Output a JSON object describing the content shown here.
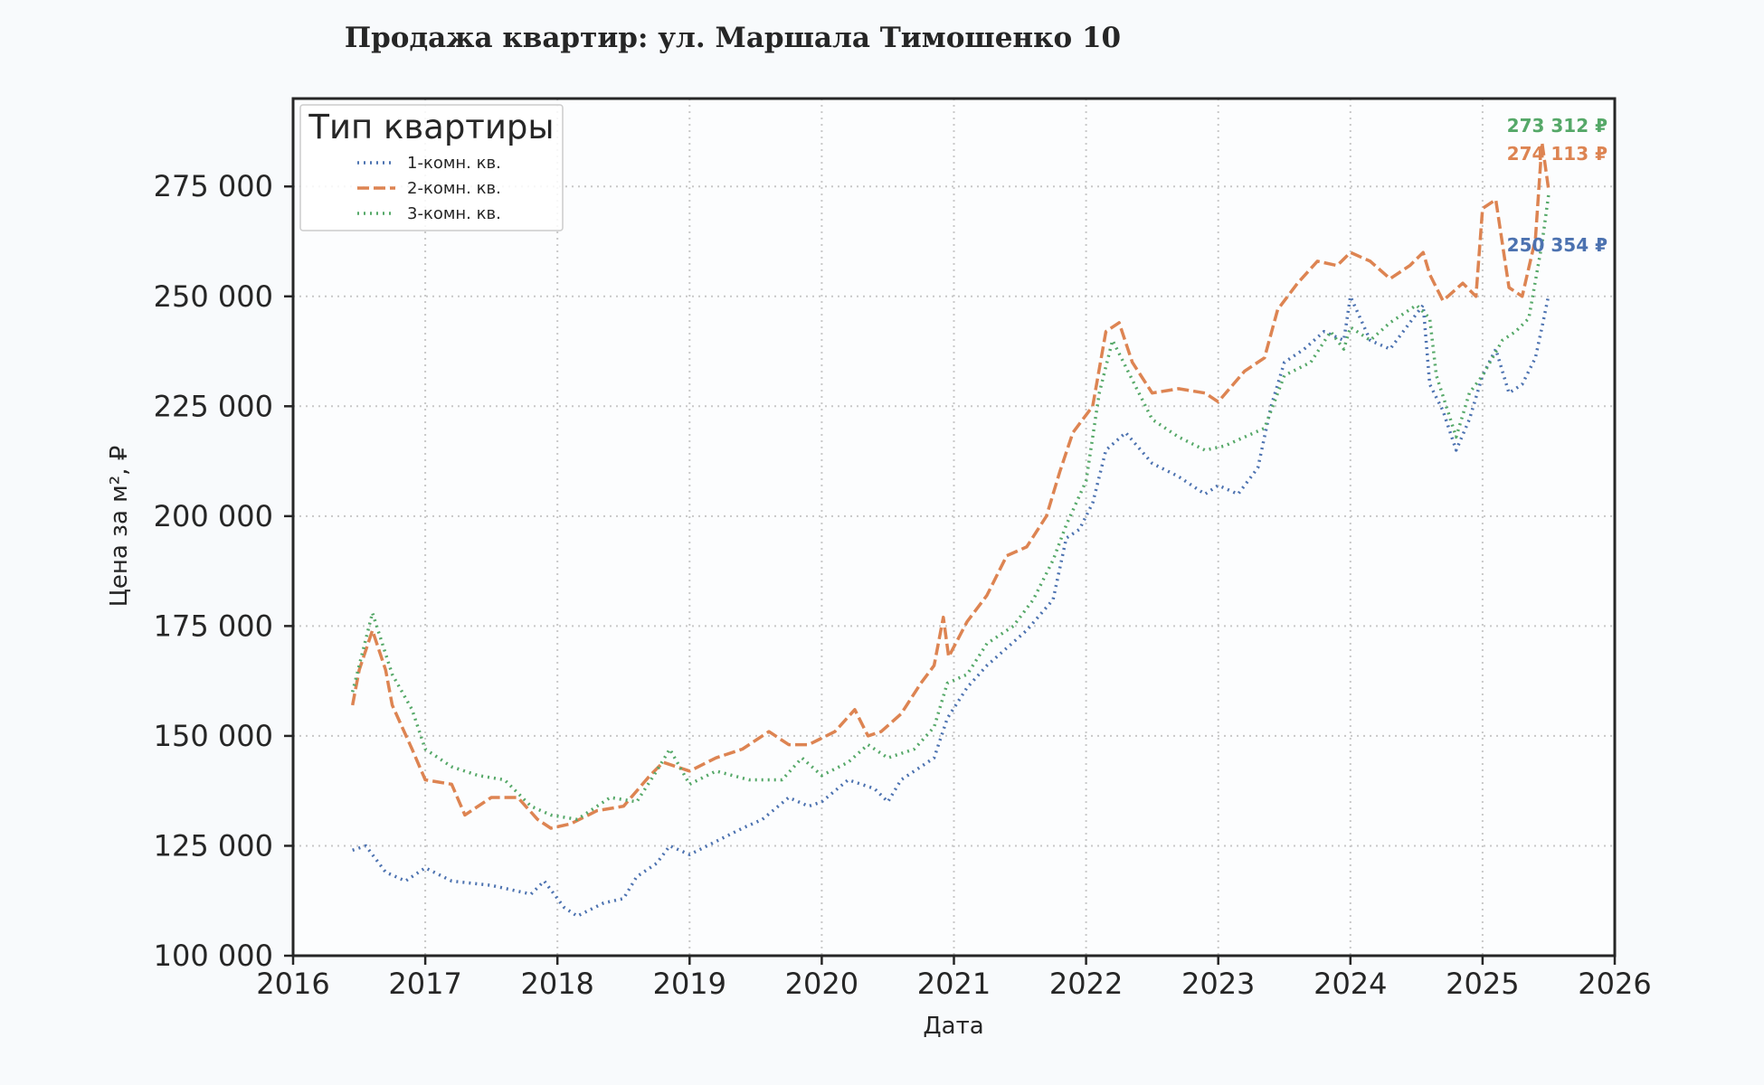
{
  "chart_data": {
    "type": "line",
    "title": "Продажа квартир: ул. Маршала Тимошенко 10",
    "xlabel": "Дата",
    "ylabel": "Цена за м², ₽",
    "xlim": [
      2016,
      2026
    ],
    "ylim": [
      100000,
      295000
    ],
    "x_ticks": [
      "2016",
      "2017",
      "2018",
      "2019",
      "2020",
      "2021",
      "2022",
      "2023",
      "2024",
      "2025",
      "2026"
    ],
    "y_ticks": [
      "100 000",
      "125 000",
      "150 000",
      "175 000",
      "200 000",
      "225 000",
      "250 000",
      "275 000"
    ],
    "y_tick_values": [
      100000,
      125000,
      150000,
      175000,
      200000,
      225000,
      250000,
      275000
    ],
    "grid": true,
    "legend": {
      "title": "Тип квартиры",
      "position": "top-left"
    },
    "series": [
      {
        "name": "1-комн. кв.",
        "color": "#4c72b0",
        "dash": "dotted",
        "end_label": "250 354 ₽",
        "x": [
          2016.45,
          2016.55,
          2016.7,
          2016.85,
          2017.0,
          2017.2,
          2017.5,
          2017.8,
          2017.9,
          2018.05,
          2018.15,
          2018.35,
          2018.5,
          2018.6,
          2018.75,
          2018.85,
          2019.0,
          2019.2,
          2019.4,
          2019.55,
          2019.75,
          2019.9,
          2020.0,
          2020.2,
          2020.4,
          2020.5,
          2020.6,
          2020.7,
          2020.85,
          2020.95,
          2021.1,
          2021.25,
          2021.4,
          2021.55,
          2021.75,
          2021.85,
          2021.95,
          2022.05,
          2022.15,
          2022.3,
          2022.5,
          2022.7,
          2022.9,
          2023.0,
          2023.15,
          2023.3,
          2023.35,
          2023.4,
          2023.5,
          2023.65,
          2023.8,
          2023.95,
          2024.0,
          2024.15,
          2024.3,
          2024.5,
          2024.55,
          2024.6,
          2024.7,
          2024.8,
          2024.9,
          2025.0,
          2025.1,
          2025.2,
          2025.3,
          2025.4,
          2025.45,
          2025.5
        ],
        "y": [
          124000,
          125000,
          119000,
          117000,
          120000,
          117000,
          116000,
          114000,
          117000,
          111000,
          109000,
          112000,
          113000,
          118000,
          121000,
          125000,
          123000,
          126000,
          129000,
          131000,
          136000,
          134000,
          135000,
          140000,
          138000,
          135000,
          140000,
          142000,
          145000,
          154000,
          161000,
          166000,
          170000,
          174000,
          181000,
          195000,
          197000,
          203000,
          215000,
          219000,
          212000,
          209000,
          205000,
          207000,
          205000,
          211000,
          218000,
          225000,
          235000,
          238000,
          242000,
          240000,
          250000,
          240000,
          238000,
          246000,
          248000,
          230000,
          224000,
          215000,
          222000,
          232000,
          238000,
          228000,
          230000,
          236000,
          243000,
          250354
        ]
      },
      {
        "name": "2-комн. кв.",
        "color": "#dd8452",
        "dash": "dashed",
        "end_label": "274 113 ₽",
        "x": [
          2016.45,
          2016.5,
          2016.6,
          2016.7,
          2016.75,
          2016.9,
          2017.0,
          2017.2,
          2017.3,
          2017.5,
          2017.7,
          2017.85,
          2017.95,
          2018.1,
          2018.3,
          2018.5,
          2018.7,
          2018.8,
          2019.0,
          2019.2,
          2019.4,
          2019.6,
          2019.75,
          2019.9,
          2020.1,
          2020.25,
          2020.35,
          2020.45,
          2020.6,
          2020.75,
          2020.85,
          2020.92,
          2020.96,
          2021.1,
          2021.25,
          2021.4,
          2021.55,
          2021.7,
          2021.8,
          2021.9,
          2022.05,
          2022.15,
          2022.25,
          2022.35,
          2022.5,
          2022.7,
          2022.9,
          2023.0,
          2023.2,
          2023.35,
          2023.45,
          2023.6,
          2023.75,
          2023.9,
          2024.0,
          2024.15,
          2024.3,
          2024.45,
          2024.55,
          2024.6,
          2024.7,
          2024.85,
          2024.95,
          2025.0,
          2025.1,
          2025.2,
          2025.3,
          2025.4,
          2025.45,
          2025.5
        ],
        "y": [
          157000,
          165000,
          174000,
          165000,
          157000,
          147000,
          140000,
          139000,
          132000,
          136000,
          136000,
          131000,
          129000,
          130000,
          133000,
          134000,
          141000,
          144000,
          142000,
          145000,
          147000,
          151000,
          148000,
          148000,
          151000,
          156000,
          150000,
          151000,
          155000,
          162000,
          166000,
          177000,
          168000,
          176000,
          182000,
          191000,
          193000,
          200000,
          210000,
          219000,
          225000,
          242000,
          244000,
          235000,
          228000,
          229000,
          228000,
          226000,
          233000,
          236000,
          247000,
          253000,
          258000,
          257000,
          260000,
          258000,
          254000,
          257000,
          260000,
          255000,
          249000,
          253000,
          250000,
          270000,
          272000,
          252000,
          250000,
          263000,
          285000,
          274113
        ]
      },
      {
        "name": "3-комн. кв.",
        "color": "#55a868",
        "dash": "dotted",
        "end_label": "273 312 ₽",
        "x": [
          2016.45,
          2016.55,
          2016.6,
          2016.75,
          2016.9,
          2017.0,
          2017.2,
          2017.4,
          2017.6,
          2017.8,
          2017.95,
          2018.15,
          2018.4,
          2018.6,
          2018.75,
          2018.85,
          2019.0,
          2019.2,
          2019.45,
          2019.7,
          2019.85,
          2020.0,
          2020.2,
          2020.35,
          2020.5,
          2020.7,
          2020.85,
          2020.95,
          2021.1,
          2021.25,
          2021.45,
          2021.6,
          2021.75,
          2021.85,
          2022.0,
          2022.1,
          2022.2,
          2022.35,
          2022.5,
          2022.7,
          2022.9,
          2023.05,
          2023.2,
          2023.35,
          2023.5,
          2023.7,
          2023.85,
          2023.95,
          2024.0,
          2024.15,
          2024.3,
          2024.5,
          2024.6,
          2024.65,
          2024.8,
          2024.9,
          2025.0,
          2025.15,
          2025.25,
          2025.35,
          2025.45,
          2025.5
        ],
        "y": [
          160000,
          172000,
          178000,
          164000,
          156000,
          147000,
          143000,
          141000,
          140000,
          134000,
          132000,
          131000,
          136000,
          135000,
          142000,
          147000,
          139000,
          142000,
          140000,
          140000,
          145000,
          141000,
          144000,
          148000,
          145000,
          147000,
          152000,
          162000,
          164000,
          171000,
          175000,
          181000,
          190000,
          198000,
          208000,
          228000,
          240000,
          231000,
          222000,
          218000,
          215000,
          216000,
          218000,
          220000,
          232000,
          235000,
          242000,
          238000,
          243000,
          240000,
          244000,
          248000,
          245000,
          232000,
          218000,
          228000,
          232000,
          240000,
          242000,
          245000,
          262000,
          273312
        ]
      }
    ]
  }
}
